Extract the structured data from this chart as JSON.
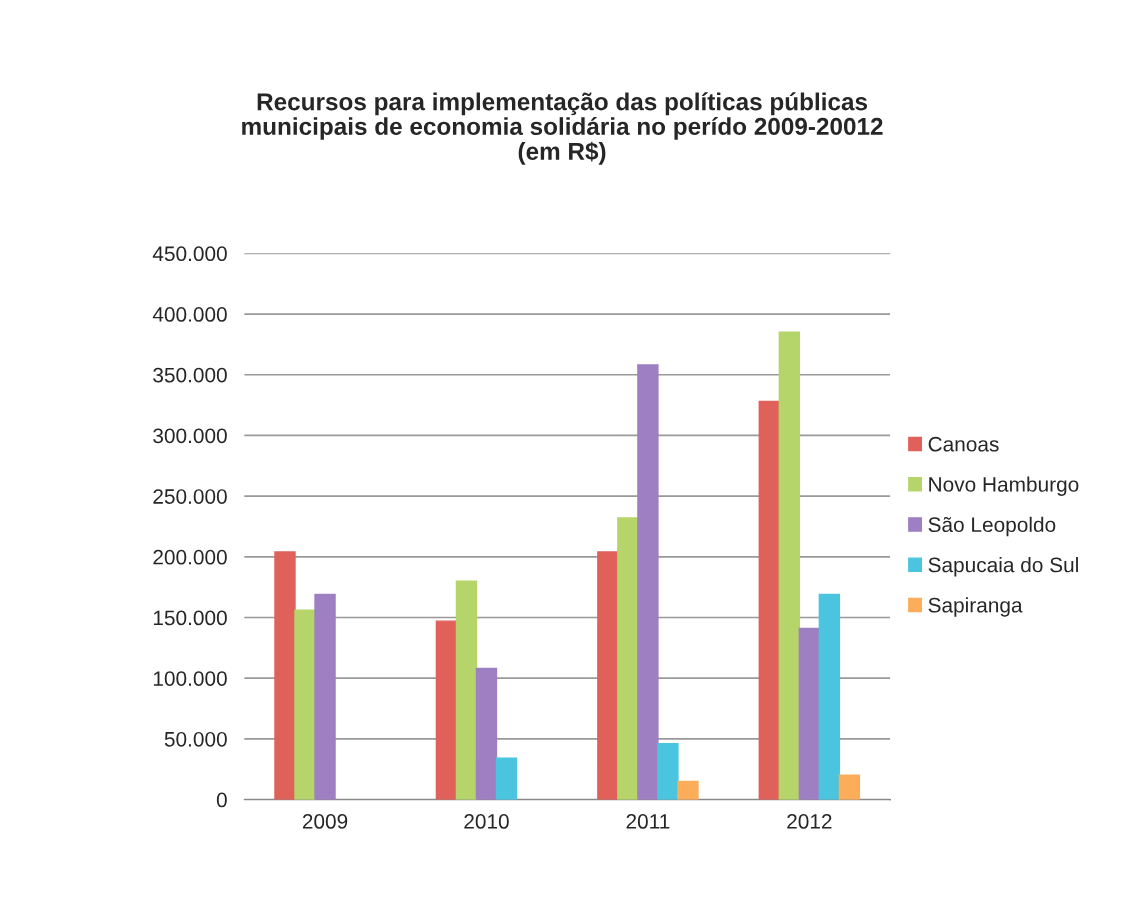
{
  "chart_data": {
    "type": "bar",
    "title": "Recursos para implementação das políticas públicas\nmunicipais de economia solidária no perído 2009-20012\n(em R$)",
    "categories": [
      "2009",
      "2010",
      "2011",
      "2012"
    ],
    "series": [
      {
        "name": "Canoas",
        "color": "#e0605a",
        "values": [
          204000,
          147000,
          204000,
          328000
        ]
      },
      {
        "name": "Novo Hamburgo",
        "color": "#b5d56a",
        "values": [
          156000,
          180000,
          232000,
          385000
        ]
      },
      {
        "name": "São Leopoldo",
        "color": "#9d7fc2",
        "values": [
          169000,
          108000,
          358000,
          141000
        ]
      },
      {
        "name": "Sapucaia do Sul",
        "color": "#4bc5df",
        "values": [
          null,
          34000,
          46000,
          169000
        ]
      },
      {
        "name": "Sapiranga",
        "color": "#fbad5a",
        "values": [
          null,
          null,
          15000,
          20000
        ]
      }
    ],
    "ylim": [
      0,
      450000
    ],
    "yticks": [
      0,
      {
        "value": 50000,
        "label": "50.000"
      },
      {
        "value": 100000,
        "label": "100.000"
      },
      {
        "value": 150000,
        "label": "150.000"
      },
      {
        "value": 200000,
        "label": "200.000"
      },
      {
        "value": 250000,
        "label": "250.000"
      },
      {
        "value": 300000,
        "label": "300.000"
      },
      {
        "value": 350000,
        "label": "350.000"
      },
      {
        "value": 400000,
        "label": "400.000"
      },
      {
        "value": 450000,
        "label": "450.000"
      }
    ],
    "grid": "y",
    "legend": "right"
  }
}
